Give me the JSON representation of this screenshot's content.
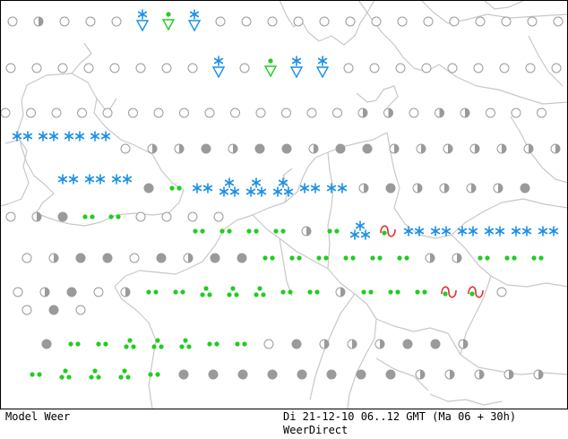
{
  "footer": {
    "model_label": "Model Weer",
    "time_label": "Di 21-12-10 06..12 GMT (Ma 06 + 30h)",
    "brand_label": "WeerDirect"
  },
  "colors": {
    "border": "#c8c8c8",
    "frame": "#000000",
    "cloud": "#9a9a9a",
    "snow": "#1a8fe8",
    "rain": "#22cc22",
    "freezing_rain": "#e23030"
  },
  "symbol_legend": {
    "empty_circle": "clear",
    "half_circle": "partly-cloudy",
    "grey_disc": "cloudy",
    "double_star": "snow",
    "triple_star": "heavy-snow",
    "star_triangle": "snow-shower",
    "dot_triangle": "rain-shower",
    "double_dot": "rain",
    "triple_dot": "heavy-rain",
    "dot_curve": "freezing-rain"
  },
  "weather_rows": [
    "....................",
    "....s...d.s.......sE",
    ".....................",
    "....................",
    "E.E..EEEEEEEEEEEEEEE",
    "....................",
    ".....................",
    "....................",
    "....................",
    "....................",
    "...................."
  ]
}
